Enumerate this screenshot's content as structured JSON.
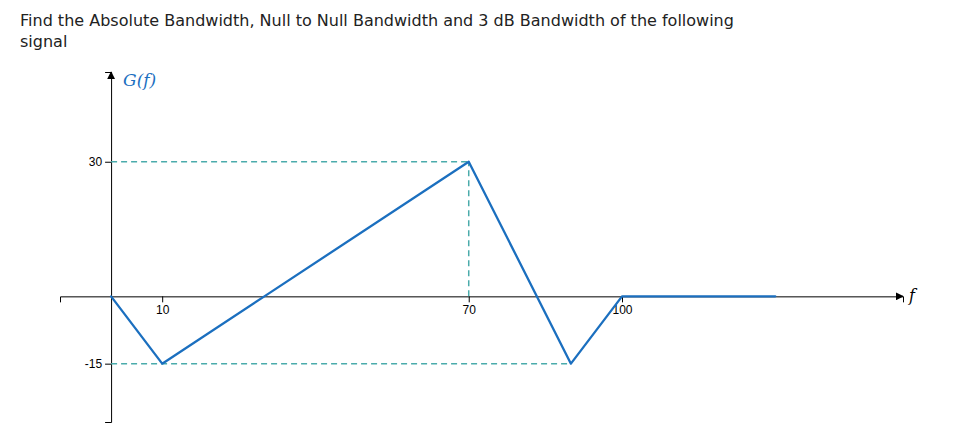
{
  "chart_data": {
    "type": "line",
    "title": "Find the Absolute Bandwidth, Null to Null Bandwidth and 3 dB Bandwidth of the following\nsignal",
    "x_label": "f",
    "y_label": "G(f)",
    "x": [
      0,
      10,
      30,
      70,
      90,
      100,
      130
    ],
    "values": [
      0,
      -15,
      0,
      30,
      -15,
      0,
      0
    ],
    "color": "#1B6FBF",
    "xlim": [
      -10,
      155
    ],
    "ylim": [
      -28,
      50
    ],
    "xticks": [
      10,
      70,
      100
    ],
    "yticks": [
      30,
      -15
    ],
    "grid": false,
    "guides": [
      {
        "x": [
          0,
          70
        ],
        "y": [
          30,
          30
        ],
        "color": "#4AABAB",
        "line_style": "dashed"
      },
      {
        "x": [
          0,
          90
        ],
        "y": [
          -15,
          -15
        ],
        "color": "#4AABAB",
        "line_style": "dashed"
      },
      {
        "x": [
          70,
          70
        ],
        "y": [
          0,
          30
        ],
        "color": "#4AABAB",
        "line_style": "dashed"
      }
    ]
  }
}
